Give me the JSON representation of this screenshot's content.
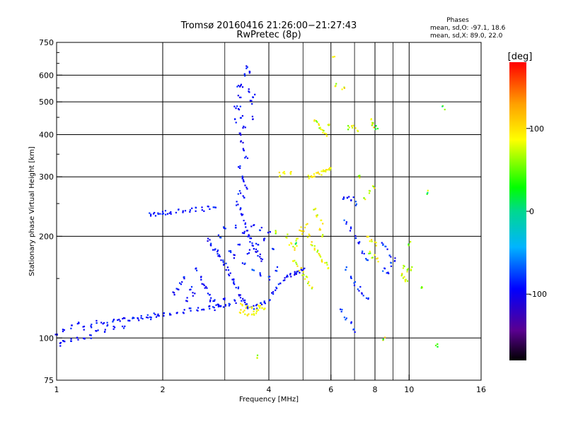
{
  "chart_data": {
    "type": "scatter",
    "title": "Tromsø 20160416 21:26:00−21:27:43",
    "subtitle": "RwPretec (8p)",
    "xlabel": "Frequency [MHz]",
    "ylabel": "Stationary phase Virtual Height [km]",
    "x_scale": "log",
    "y_scale": "log",
    "xlim": [
      1,
      16
    ],
    "ylim": [
      75,
      750
    ],
    "x_ticks": [
      1,
      2,
      4,
      6,
      8,
      10,
      16
    ],
    "x_minor_ticks": [
      3,
      5,
      7,
      9
    ],
    "y_ticks": [
      75,
      100,
      200,
      300,
      400,
      500,
      600,
      750
    ],
    "y_minor_ticks": [
      150,
      250,
      350,
      450,
      550,
      650,
      700
    ],
    "grid": true,
    "phases_box": {
      "title": "Phases",
      "line1": "mean, sd,O: -97.1, 18.6",
      "line2": "mean, sd,X: 89.0, 22.0"
    },
    "colorbar": {
      "label": "[deg]",
      "range": [
        -180,
        180
      ],
      "ticks": [
        100,
        0,
        -100
      ],
      "tick_labels": [
        "100",
        "0",
        "-100"
      ],
      "colormap": "rainbow: black-purple-blue-cyan-green-yellow-orange-red"
    },
    "point_groups": [
      {
        "phase_mean": -95,
        "phase_sd": 12,
        "points": [
          [
            1.0,
            103
          ],
          [
            1.05,
            106
          ],
          [
            1.1,
            108
          ],
          [
            1.15,
            110
          ],
          [
            1.2,
            107
          ],
          [
            1.25,
            109
          ],
          [
            1.3,
            112
          ],
          [
            1.35,
            111
          ],
          [
            1.4,
            110
          ],
          [
            1.45,
            113
          ],
          [
            1.5,
            112
          ],
          [
            1.55,
            114
          ],
          [
            1.6,
            113
          ],
          [
            1.65,
            115
          ],
          [
            1.7,
            114
          ],
          [
            1.75,
            115
          ],
          [
            1.8,
            116
          ],
          [
            1.85,
            115
          ],
          [
            1.9,
            117
          ],
          [
            1.95,
            116
          ],
          [
            2.0,
            117
          ],
          [
            2.1,
            118
          ],
          [
            2.2,
            119
          ],
          [
            2.3,
            120
          ],
          [
            2.4,
            121
          ],
          [
            2.5,
            122
          ],
          [
            2.6,
            121
          ],
          [
            2.7,
            123
          ],
          [
            2.8,
            122
          ],
          [
            2.9,
            124
          ],
          [
            3.0,
            125
          ],
          [
            3.1,
            126
          ],
          [
            3.2,
            128
          ]
        ]
      },
      {
        "phase_mean": -100,
        "phase_sd": 10,
        "points": [
          [
            1.02,
            96
          ],
          [
            1.05,
            97
          ],
          [
            1.1,
            98
          ],
          [
            1.15,
            99
          ],
          [
            1.2,
            100
          ],
          [
            1.25,
            101
          ],
          [
            1.3,
            104
          ],
          [
            1.38,
            105
          ],
          [
            1.45,
            107
          ],
          [
            1.55,
            108
          ]
        ]
      },
      {
        "phase_mean": -95,
        "phase_sd": 10,
        "points": [
          [
            1.85,
            232
          ],
          [
            1.9,
            233
          ],
          [
            1.95,
            234
          ],
          [
            2.0,
            234
          ],
          [
            2.05,
            235
          ],
          [
            2.1,
            236
          ],
          [
            2.2,
            237
          ],
          [
            2.3,
            238
          ],
          [
            2.4,
            239
          ],
          [
            2.5,
            240
          ],
          [
            2.6,
            241
          ],
          [
            2.7,
            243
          ],
          [
            2.8,
            244
          ]
        ]
      },
      {
        "phase_mean": -100,
        "phase_sd": 14,
        "points": [
          [
            3.3,
            520
          ],
          [
            3.35,
            560
          ],
          [
            3.4,
            600
          ],
          [
            3.45,
            630
          ],
          [
            3.5,
            610
          ],
          [
            3.3,
            480
          ],
          [
            3.35,
            450
          ],
          [
            3.4,
            420
          ],
          [
            3.3,
            400
          ],
          [
            3.35,
            380
          ],
          [
            3.4,
            360
          ],
          [
            3.45,
            340
          ],
          [
            3.3,
            320
          ],
          [
            3.35,
            300
          ],
          [
            3.4,
            290
          ],
          [
            3.45,
            280
          ],
          [
            3.3,
            270
          ],
          [
            3.4,
            260
          ],
          [
            3.25,
            250
          ],
          [
            3.3,
            240
          ],
          [
            3.35,
            230
          ],
          [
            3.4,
            220
          ],
          [
            3.45,
            210
          ],
          [
            3.5,
            200
          ],
          [
            3.55,
            195
          ],
          [
            3.6,
            190
          ],
          [
            3.65,
            185
          ],
          [
            3.7,
            180
          ],
          [
            3.75,
            175
          ],
          [
            3.8,
            170
          ],
          [
            3.6,
            450
          ],
          [
            3.55,
            500
          ],
          [
            3.5,
            540
          ],
          [
            3.62,
            520
          ],
          [
            3.2,
            440
          ],
          [
            3.22,
            480
          ],
          [
            3.28,
            560
          ]
        ]
      },
      {
        "phase_mean": -98,
        "phase_sd": 14,
        "points": [
          [
            2.7,
            195
          ],
          [
            2.75,
            190
          ],
          [
            2.8,
            185
          ],
          [
            2.85,
            180
          ],
          [
            2.9,
            175
          ],
          [
            2.95,
            170
          ],
          [
            3.0,
            165
          ],
          [
            3.05,
            160
          ],
          [
            3.1,
            155
          ],
          [
            3.15,
            150
          ],
          [
            3.2,
            145
          ],
          [
            3.25,
            140
          ],
          [
            3.3,
            135
          ],
          [
            3.35,
            130
          ],
          [
            3.4,
            128
          ],
          [
            3.45,
            126
          ],
          [
            3.5,
            124
          ],
          [
            3.6,
            123
          ],
          [
            3.7,
            124
          ],
          [
            3.8,
            126
          ],
          [
            3.9,
            128
          ],
          [
            4.0,
            130
          ],
          [
            4.1,
            135
          ],
          [
            4.2,
            140
          ],
          [
            4.3,
            145
          ],
          [
            4.4,
            150
          ],
          [
            4.5,
            152
          ],
          [
            4.6,
            154
          ],
          [
            4.7,
            155
          ],
          [
            4.8,
            156
          ],
          [
            4.9,
            158
          ],
          [
            5.0,
            160
          ],
          [
            2.5,
            160
          ],
          [
            2.55,
            150
          ],
          [
            2.6,
            145
          ],
          [
            2.65,
            140
          ],
          [
            2.7,
            135
          ],
          [
            2.75,
            130
          ],
          [
            2.8,
            128
          ],
          [
            2.85,
            126
          ],
          [
            2.9,
            125
          ],
          [
            3.0,
            130
          ],
          [
            2.4,
            140
          ],
          [
            2.45,
            135
          ],
          [
            2.35,
            130
          ],
          [
            2.3,
            150
          ],
          [
            2.25,
            145
          ],
          [
            2.2,
            140
          ],
          [
            2.15,
            135
          ]
        ]
      },
      {
        "phase_mean": -92,
        "phase_sd": 18,
        "points": [
          [
            3.2,
            175
          ],
          [
            3.4,
            165
          ],
          [
            3.6,
            160
          ],
          [
            3.8,
            155
          ],
          [
            4.0,
            150
          ],
          [
            4.2,
            160
          ],
          [
            3.5,
            180
          ],
          [
            3.7,
            190
          ],
          [
            3.9,
            195
          ],
          [
            4.1,
            185
          ],
          [
            3.3,
            190
          ],
          [
            3.1,
            180
          ],
          [
            2.9,
            200
          ],
          [
            3.0,
            210
          ],
          [
            3.2,
            215
          ],
          [
            3.4,
            205
          ],
          [
            3.6,
            215
          ],
          [
            3.8,
            210
          ],
          [
            4.0,
            205
          ]
        ]
      },
      {
        "phase_mean": 90,
        "phase_sd": 15,
        "points": [
          [
            3.3,
            120
          ],
          [
            3.4,
            119
          ],
          [
            3.5,
            118
          ],
          [
            3.6,
            119
          ],
          [
            3.7,
            121
          ],
          [
            3.8,
            122
          ],
          [
            3.9,
            123
          ],
          [
            3.55,
            122
          ],
          [
            3.45,
            124
          ],
          [
            3.65,
            117
          ],
          [
            3.75,
            126
          ],
          [
            3.35,
            125
          ]
        ]
      },
      {
        "phase_mean": 85,
        "phase_sd": 25,
        "points": [
          [
            4.5,
            200
          ],
          [
            4.6,
            190
          ],
          [
            4.7,
            185
          ],
          [
            4.8,
            195
          ],
          [
            4.9,
            210
          ],
          [
            5.0,
            205
          ],
          [
            5.1,
            215
          ],
          [
            5.2,
            200
          ],
          [
            5.3,
            190
          ],
          [
            5.4,
            185
          ],
          [
            5.5,
            180
          ],
          [
            5.6,
            175
          ],
          [
            5.7,
            170
          ],
          [
            5.8,
            165
          ],
          [
            5.9,
            160
          ],
          [
            5.6,
            210
          ],
          [
            5.7,
            200
          ],
          [
            5.65,
            220
          ],
          [
            5.5,
            230
          ],
          [
            5.4,
            240
          ],
          [
            4.7,
            170
          ],
          [
            4.8,
            165
          ],
          [
            4.9,
            160
          ],
          [
            5.0,
            155
          ],
          [
            5.1,
            150
          ],
          [
            5.2,
            145
          ],
          [
            5.3,
            140
          ]
        ]
      },
      {
        "phase_mean": 90,
        "phase_sd": 18,
        "points": [
          [
            5.2,
            300
          ],
          [
            5.3,
            302
          ],
          [
            5.4,
            304
          ],
          [
            5.5,
            306
          ],
          [
            5.6,
            308
          ],
          [
            5.7,
            310
          ],
          [
            5.8,
            312
          ],
          [
            5.9,
            315
          ],
          [
            6.0,
            318
          ],
          [
            4.3,
            305
          ],
          [
            4.4,
            308
          ],
          [
            4.6,
            310
          ]
        ]
      },
      {
        "phase_mean": 80,
        "phase_sd": 30,
        "points": [
          [
            5.4,
            440
          ],
          [
            5.5,
            430
          ],
          [
            5.6,
            420
          ],
          [
            5.7,
            410
          ],
          [
            5.8,
            400
          ],
          [
            6.7,
            420
          ],
          [
            6.9,
            425
          ],
          [
            7.1,
            415
          ],
          [
            7.8,
            440
          ],
          [
            7.9,
            430
          ],
          [
            8.0,
            420
          ],
          [
            5.9,
            430
          ]
        ]
      },
      {
        "phase_mean": -90,
        "phase_sd": 20,
        "points": [
          [
            6.5,
            260
          ],
          [
            6.7,
            262
          ],
          [
            6.9,
            258
          ],
          [
            7.1,
            250
          ],
          [
            6.6,
            220
          ],
          [
            6.8,
            210
          ],
          [
            7.0,
            200
          ],
          [
            7.2,
            190
          ],
          [
            7.4,
            180
          ],
          [
            7.6,
            170
          ],
          [
            6.6,
            160
          ],
          [
            6.8,
            150
          ],
          [
            7.0,
            145
          ],
          [
            7.2,
            140
          ],
          [
            7.4,
            135
          ],
          [
            7.6,
            130
          ],
          [
            6.4,
            120
          ],
          [
            6.6,
            115
          ],
          [
            6.8,
            110
          ],
          [
            7.0,
            105
          ],
          [
            8.5,
            160
          ],
          [
            8.7,
            155
          ],
          [
            8.9,
            165
          ],
          [
            9.1,
            170
          ],
          [
            8.4,
            190
          ],
          [
            8.6,
            185
          ],
          [
            8.8,
            175
          ]
        ]
      },
      {
        "phase_mean": 80,
        "phase_sd": 30,
        "points": [
          [
            7.6,
            200
          ],
          [
            7.8,
            195
          ],
          [
            8.0,
            190
          ],
          [
            7.7,
            180
          ],
          [
            7.9,
            175
          ],
          [
            8.1,
            170
          ],
          [
            7.5,
            260
          ],
          [
            7.7,
            270
          ],
          [
            7.9,
            280
          ],
          [
            9.5,
            155
          ],
          [
            9.7,
            150
          ],
          [
            9.9,
            158
          ],
          [
            10.1,
            160
          ],
          [
            9.6,
            162
          ],
          [
            9.8,
            148
          ]
        ]
      },
      {
        "phase_mean": 60,
        "phase_sd": 60,
        "points": [
          [
            6.2,
            560
          ],
          [
            6.5,
            545
          ],
          [
            6.1,
            680
          ],
          [
            12.0,
            95
          ],
          [
            12.5,
            480
          ],
          [
            11.2,
            270
          ],
          [
            8.5,
            100
          ],
          [
            8.1,
            420
          ],
          [
            7.2,
            300
          ],
          [
            10.0,
            190
          ],
          [
            10.8,
            140
          ],
          [
            4.8,
            190
          ],
          [
            4.2,
            205
          ],
          [
            3.7,
            88
          ]
        ]
      }
    ]
  }
}
